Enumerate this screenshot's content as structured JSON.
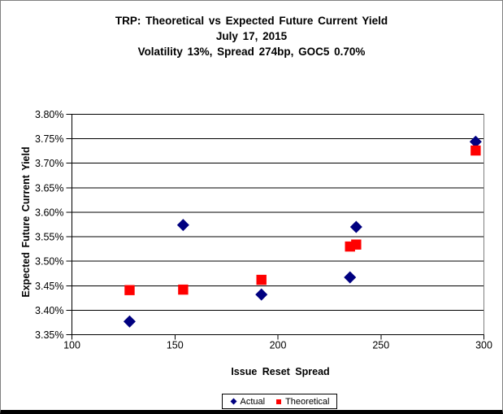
{
  "frame": {
    "background": "#FFFFFF",
    "border_color": "#808080",
    "bottom_bar_color": "#000000",
    "gridline_color": "#000000",
    "plot_border_right_color": "#808080"
  },
  "chart_data": {
    "type": "scatter",
    "title_lines": [
      "TRP: Theoretical vs Expected Future Current Yield",
      "July 17, 2015",
      "Volatility 13%, Spread 274bp, GOC5 0.70%"
    ],
    "xlabel": "Issue Reset Spread",
    "ylabel": "Expected Future Current Yield",
    "xlim": [
      100,
      300
    ],
    "ylim": [
      3.35,
      3.8
    ],
    "x_ticks": [
      100,
      150,
      200,
      250,
      300
    ],
    "y_tick_labels": [
      "3.35%",
      "3.40%",
      "3.45%",
      "3.50%",
      "3.55%",
      "3.60%",
      "3.65%",
      "3.70%",
      "3.75%",
      "3.80%"
    ],
    "grid": "horizontal",
    "legend_position": "bottom-center",
    "series": [
      {
        "name": "Actual",
        "marker": "diamond",
        "color": "#000080",
        "points": [
          {
            "x": 128,
            "y": 3.377
          },
          {
            "x": 154,
            "y": 3.574
          },
          {
            "x": 192,
            "y": 3.432
          },
          {
            "x": 235,
            "y": 3.467
          },
          {
            "x": 238,
            "y": 3.57
          },
          {
            "x": 296,
            "y": 3.744
          }
        ]
      },
      {
        "name": "Theoretical",
        "marker": "square",
        "color": "#FF0000",
        "points": [
          {
            "x": 128,
            "y": 3.441
          },
          {
            "x": 154,
            "y": 3.442
          },
          {
            "x": 192,
            "y": 3.462
          },
          {
            "x": 235,
            "y": 3.53
          },
          {
            "x": 238,
            "y": 3.534
          },
          {
            "x": 296,
            "y": 3.726
          }
        ]
      }
    ]
  }
}
